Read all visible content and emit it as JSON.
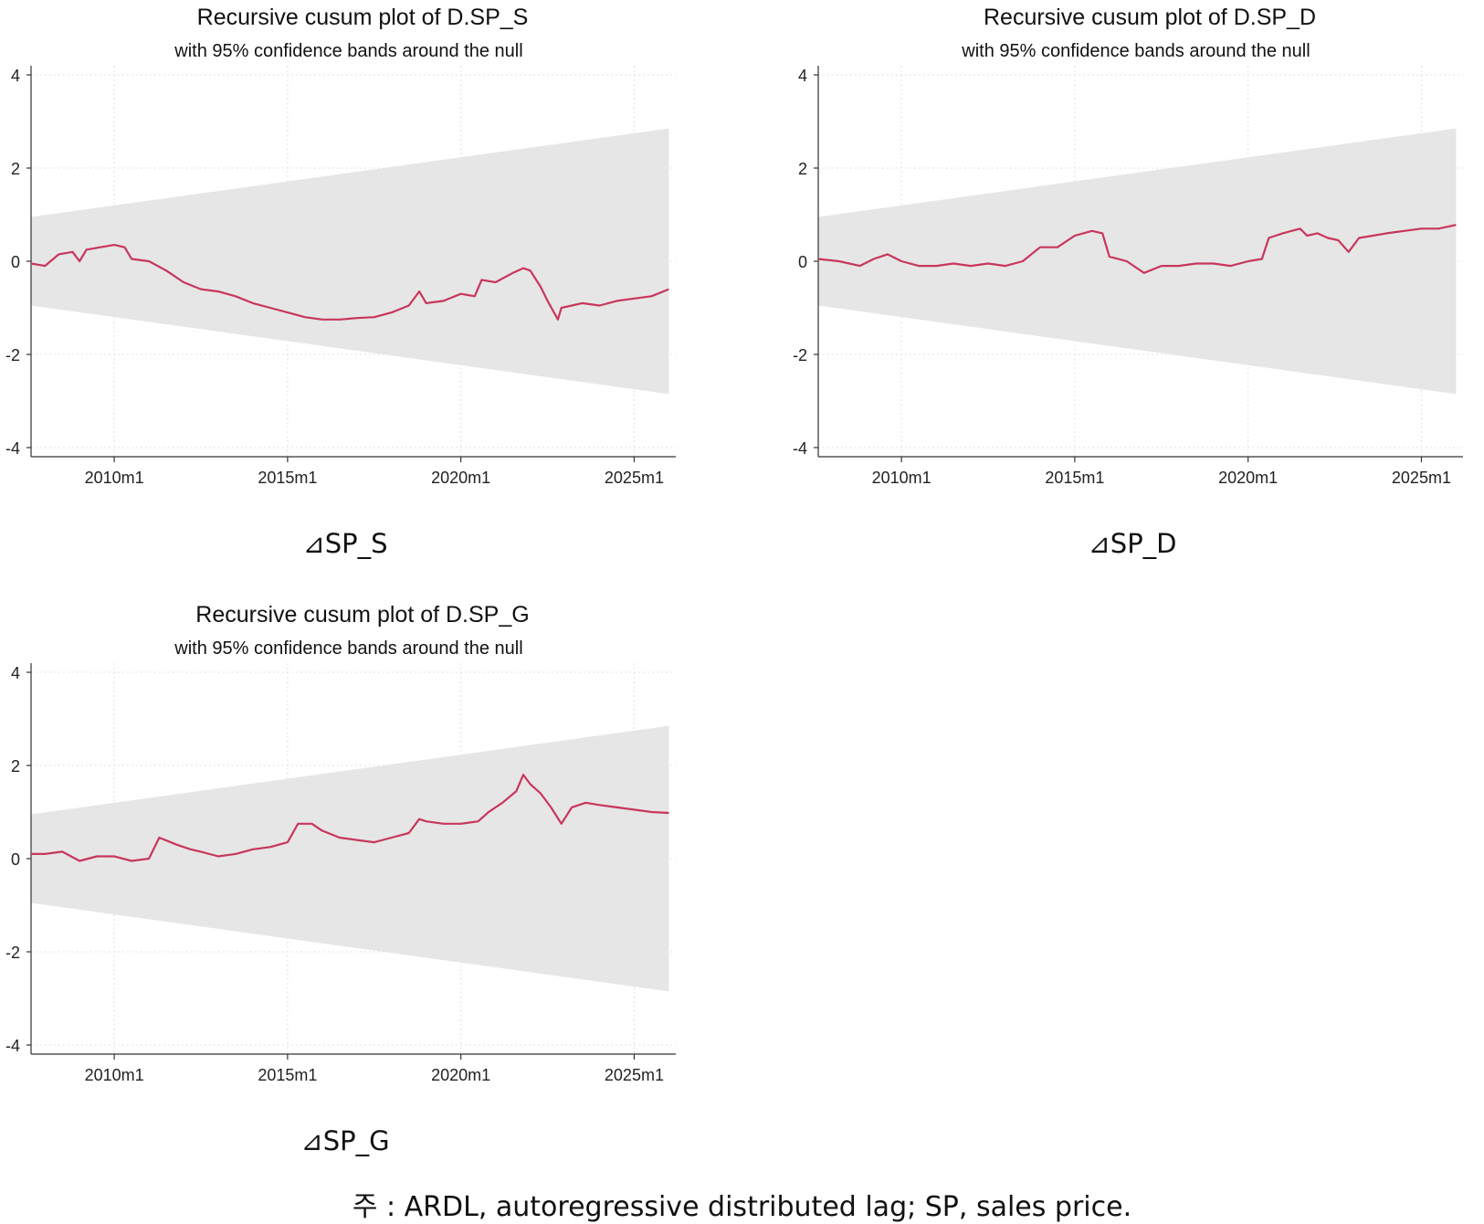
{
  "chart_data": [
    {
      "id": "sp_s",
      "type": "line",
      "title": "Recursive cusum plot of D.SP_S",
      "subtitle": "with 95% confidence bands around the null",
      "caption": "⊿SP_S",
      "ylim": [
        -4,
        4
      ],
      "yticks": [
        "4",
        "2",
        "0",
        "-2",
        "-4"
      ],
      "xlim": [
        2007.6,
        2026.2
      ],
      "xticks": [
        "2010m1",
        "2015m1",
        "2020m1",
        "2025m1"
      ],
      "grid": true,
      "band": {
        "x": [
          2007.6,
          2026.0
        ],
        "upper": [
          0.95,
          2.85
        ],
        "lower": [
          -0.95,
          -2.85
        ]
      },
      "series": [
        {
          "x": [
            2007.6,
            2008.0,
            2008.4,
            2008.8,
            2009.0,
            2009.2,
            2009.6,
            2010.0,
            2010.3,
            2010.5,
            2011.0,
            2011.5,
            2012.0,
            2012.5,
            2013.0,
            2013.5,
            2014.0,
            2014.5,
            2015.0,
            2015.5,
            2016.0,
            2016.5,
            2017.0,
            2017.5,
            2018.0,
            2018.5,
            2018.8,
            2019.0,
            2019.5,
            2020.0,
            2020.4,
            2020.6,
            2021.0,
            2021.5,
            2021.8,
            2022.0,
            2022.3,
            2022.5,
            2022.8,
            2022.9,
            2023.2,
            2023.5,
            2024.0,
            2024.5,
            2025.0,
            2025.5,
            2026.0
          ],
          "y": [
            -0.05,
            -0.1,
            0.15,
            0.2,
            0.0,
            0.25,
            0.3,
            0.35,
            0.3,
            0.05,
            0.0,
            -0.2,
            -0.45,
            -0.6,
            -0.65,
            -0.75,
            -0.9,
            -1.0,
            -1.1,
            -1.2,
            -1.25,
            -1.25,
            -1.22,
            -1.2,
            -1.1,
            -0.95,
            -0.65,
            -0.9,
            -0.85,
            -0.7,
            -0.75,
            -0.4,
            -0.45,
            -0.25,
            -0.15,
            -0.2,
            -0.55,
            -0.85,
            -1.25,
            -1.0,
            -0.95,
            -0.9,
            -0.95,
            -0.85,
            -0.8,
            -0.75,
            -0.6
          ]
        }
      ]
    },
    {
      "id": "sp_d",
      "type": "line",
      "title": "Recursive cusum plot of D.SP_D",
      "subtitle": "with 95% confidence bands around the null",
      "caption": "⊿SP_D",
      "ylim": [
        -4,
        4
      ],
      "yticks": [
        "4",
        "2",
        "0",
        "-2",
        "-4"
      ],
      "xlim": [
        2007.6,
        2026.2
      ],
      "xticks": [
        "2010m1",
        "2015m1",
        "2020m1",
        "2025m1"
      ],
      "grid": true,
      "band": {
        "x": [
          2007.6,
          2026.0
        ],
        "upper": [
          0.95,
          2.85
        ],
        "lower": [
          -0.95,
          -2.85
        ]
      },
      "series": [
        {
          "x": [
            2007.6,
            2008.2,
            2008.8,
            2009.2,
            2009.6,
            2010.0,
            2010.5,
            2011.0,
            2011.5,
            2012.0,
            2012.5,
            2013.0,
            2013.5,
            2014.0,
            2014.5,
            2015.0,
            2015.5,
            2015.8,
            2016.0,
            2016.5,
            2017.0,
            2017.5,
            2018.0,
            2018.5,
            2019.0,
            2019.5,
            2020.0,
            2020.4,
            2020.6,
            2021.0,
            2021.5,
            2021.7,
            2022.0,
            2022.3,
            2022.6,
            2022.9,
            2023.2,
            2023.6,
            2024.0,
            2024.5,
            2025.0,
            2025.5,
            2026.0
          ],
          "y": [
            0.05,
            0.0,
            -0.1,
            0.05,
            0.15,
            0.0,
            -0.1,
            -0.1,
            -0.05,
            -0.1,
            -0.05,
            -0.1,
            0.0,
            0.3,
            0.3,
            0.55,
            0.65,
            0.6,
            0.1,
            0.0,
            -0.25,
            -0.1,
            -0.1,
            -0.05,
            -0.05,
            -0.1,
            0.0,
            0.05,
            0.5,
            0.6,
            0.7,
            0.55,
            0.6,
            0.5,
            0.45,
            0.2,
            0.5,
            0.55,
            0.6,
            0.65,
            0.7,
            0.7,
            0.78
          ]
        }
      ]
    },
    {
      "id": "sp_g",
      "type": "line",
      "title": "Recursive cusum plot of D.SP_G",
      "subtitle": "with 95% confidence bands around the null",
      "caption": "⊿SP_G",
      "ylim": [
        -4,
        4
      ],
      "yticks": [
        "4",
        "2",
        "0",
        "-2",
        "-4"
      ],
      "xlim": [
        2007.6,
        2026.2
      ],
      "xticks": [
        "2010m1",
        "2015m1",
        "2020m1",
        "2025m1"
      ],
      "grid": true,
      "band": {
        "x": [
          2007.6,
          2026.0
        ],
        "upper": [
          0.95,
          2.85
        ],
        "lower": [
          -0.95,
          -2.85
        ]
      },
      "series": [
        {
          "x": [
            2007.6,
            2008.0,
            2008.5,
            2009.0,
            2009.5,
            2010.0,
            2010.5,
            2011.0,
            2011.3,
            2011.8,
            2012.2,
            2012.5,
            2013.0,
            2013.5,
            2014.0,
            2014.5,
            2015.0,
            2015.3,
            2015.7,
            2016.0,
            2016.5,
            2017.0,
            2017.5,
            2018.0,
            2018.5,
            2018.8,
            2019.0,
            2019.5,
            2020.0,
            2020.5,
            2020.8,
            2021.2,
            2021.6,
            2021.8,
            2022.0,
            2022.3,
            2022.6,
            2022.9,
            2023.2,
            2023.6,
            2024.0,
            2024.5,
            2025.0,
            2025.5,
            2026.0
          ],
          "y": [
            0.1,
            0.1,
            0.15,
            -0.05,
            0.05,
            0.05,
            -0.05,
            0.0,
            0.45,
            0.3,
            0.2,
            0.15,
            0.05,
            0.1,
            0.2,
            0.25,
            0.35,
            0.75,
            0.75,
            0.6,
            0.45,
            0.4,
            0.35,
            0.45,
            0.55,
            0.85,
            0.8,
            0.75,
            0.75,
            0.8,
            1.0,
            1.2,
            1.45,
            1.8,
            1.6,
            1.4,
            1.1,
            0.75,
            1.1,
            1.2,
            1.15,
            1.1,
            1.05,
            1.0,
            0.98
          ]
        }
      ]
    }
  ],
  "note": "주 : ARDL, autoregressive distributed lag; SP, sales price.",
  "colors": {
    "line": "#c8365c",
    "band": "#e6e6e6",
    "grid": "#e2e2e2",
    "axis": "#333333"
  }
}
